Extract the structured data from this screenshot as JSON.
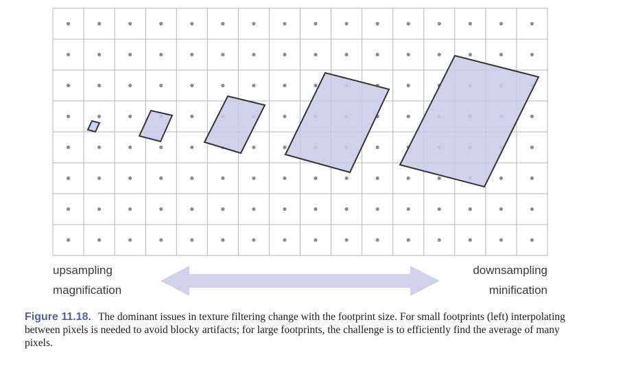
{
  "figure": {
    "colors": {
      "grid": "#b4b4b4",
      "dot": "#8c8c8c",
      "footprint_fill": "#c9cbe8",
      "footprint_stroke": "#333333",
      "arrow_fill": "#d0d2ec"
    },
    "grid": {
      "columns": 16,
      "rows": 8
    },
    "footprints_count": 5,
    "labels": {
      "left_line1": "upsampling",
      "left_line2": "magnification",
      "right_line1": "downsampling",
      "right_line2": "minification"
    }
  },
  "caption": {
    "label": "Figure 11.18.",
    "text": "The dominant issues in texture filtering change with the footprint size. For small footprints (left) interpolating between pixels is needed to avoid blocky artifacts; for large footprints, the challenge is to efficiently find the average of many pixels."
  }
}
